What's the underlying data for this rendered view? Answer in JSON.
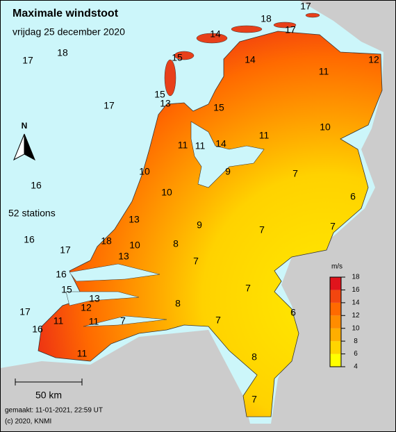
{
  "header": {
    "title": "Maximale windstoot",
    "subtitle": "vrijdag 25 december 2020"
  },
  "stations": {
    "count_label": "52 stations",
    "values": [
      17,
      18,
      14,
      17,
      18,
      17,
      15,
      14,
      12,
      11,
      15,
      13,
      17,
      15,
      10,
      11,
      11,
      11,
      14,
      10,
      9,
      7,
      16,
      10,
      6,
      13,
      9,
      7,
      7,
      16,
      18,
      10,
      8,
      17,
      13,
      7,
      16,
      15,
      7,
      13,
      12,
      8,
      6,
      17,
      11,
      11,
      7,
      7,
      16,
      8,
      11,
      7
    ]
  },
  "legend": {
    "unit": "m/s",
    "ticks": [
      18,
      16,
      14,
      12,
      10,
      8,
      6,
      4
    ],
    "colors": [
      "#ffff00",
      "#ffd400",
      "#ffae00",
      "#ff8c00",
      "#ff6a00",
      "#f2460f",
      "#e0141c"
    ]
  },
  "north": "N",
  "scale_bar": "50 km",
  "footer": [
    "gemaakt: 11-01-2021, 22:59 UT",
    "(c) 2020, KNMI"
  ]
}
